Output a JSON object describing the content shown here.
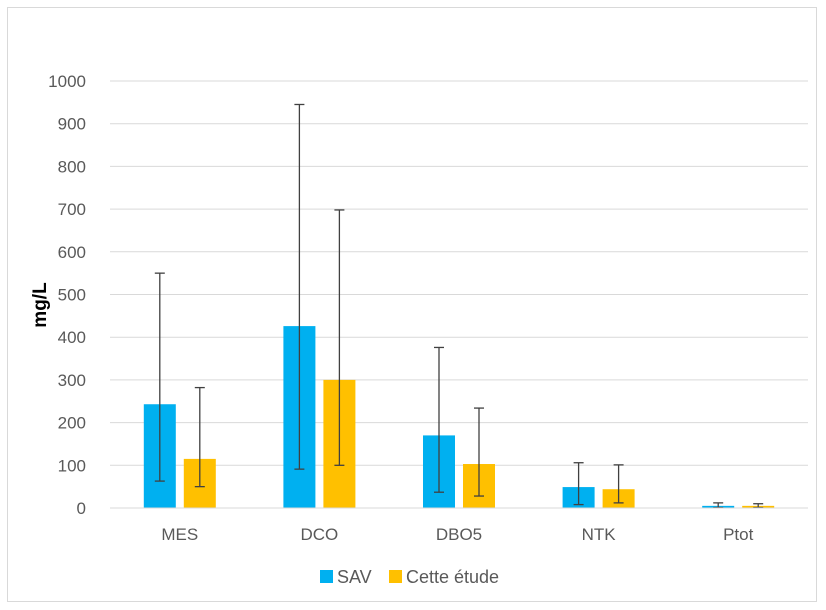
{
  "chart_data": {
    "type": "bar",
    "title": "",
    "xlabel": "",
    "ylabel": "mg/L",
    "ylim": [
      0,
      1000
    ],
    "yticks": [
      0,
      100,
      200,
      300,
      400,
      500,
      600,
      700,
      800,
      900,
      1000
    ],
    "grid": true,
    "legend_position": "bottom",
    "categories": [
      "MES",
      "DCO",
      "DBO5",
      "NTK",
      "Ptot"
    ],
    "series": [
      {
        "name": "SAV",
        "color": "#00b0f0",
        "values": [
          243,
          426,
          170,
          49,
          5
        ],
        "error_low": [
          63,
          91,
          37,
          8,
          1
        ],
        "error_high": [
          550,
          945,
          376,
          106,
          12
        ]
      },
      {
        "name": "Cette étude",
        "color": "#ffc000",
        "values": [
          115,
          300,
          103,
          44,
          5
        ],
        "error_low": [
          50,
          100,
          28,
          12,
          1
        ],
        "error_high": [
          282,
          698,
          234,
          101,
          10
        ]
      }
    ]
  }
}
